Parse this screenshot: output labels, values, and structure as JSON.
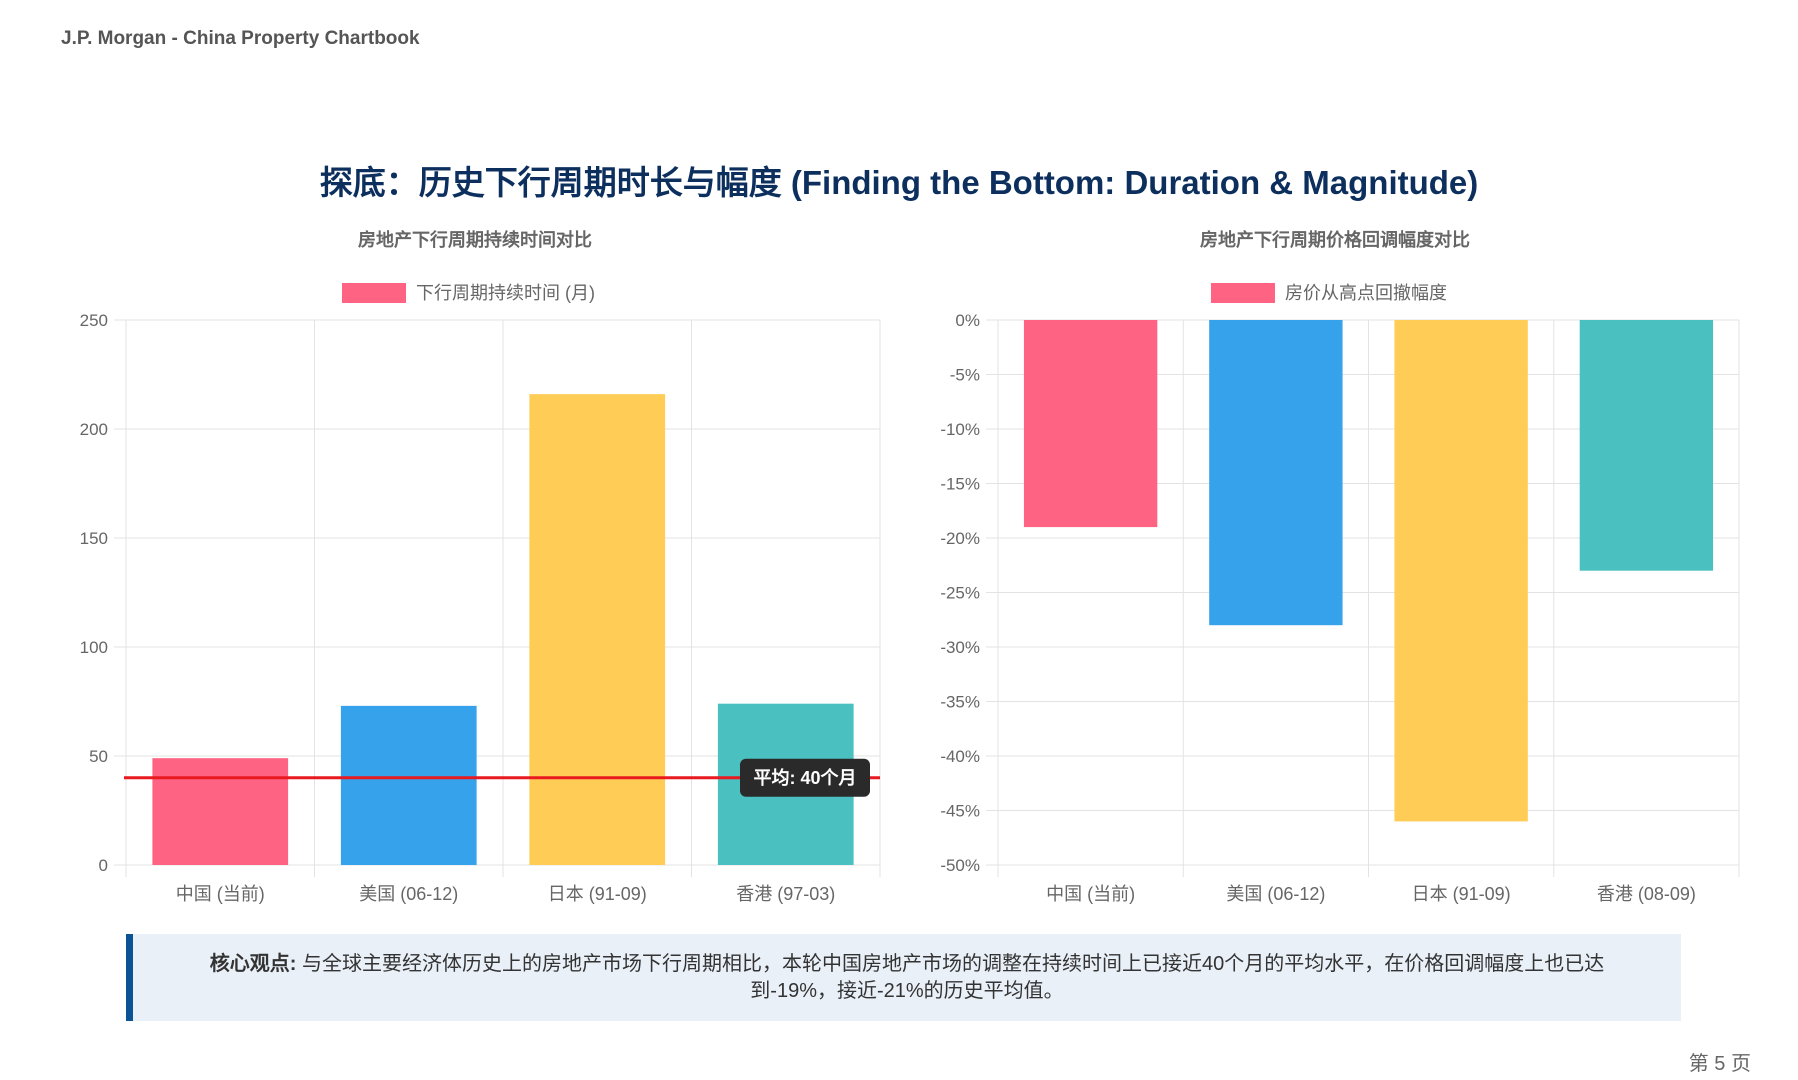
{
  "header": {
    "text": "J.P. Morgan - China Property Chartbook"
  },
  "page_title": "探底：历史下行周期时长与幅度 (Finding the Bottom: Duration & Magnitude)",
  "chart_data": [
    {
      "type": "bar",
      "title": "房地产下行周期持续时间对比",
      "legend": {
        "label": "下行周期持续时间 (月)",
        "position": "top",
        "color": "#ff6384"
      },
      "categories": [
        "中国 (当前)",
        "美国 (06-12)",
        "日本 (91-09)",
        "香港 (97-03)"
      ],
      "series": [
        {
          "name": "下行周期持续时间 (月)",
          "values": [
            49,
            73,
            216,
            74
          ]
        }
      ],
      "colors": [
        "#ff6384",
        "#36a2eb",
        "#ffcd56",
        "#4bc0c0"
      ],
      "ylim": [
        0,
        250
      ],
      "yticks": [
        0,
        50,
        100,
        150,
        200,
        250
      ],
      "ytick_labels": [
        "0",
        "50",
        "100",
        "150",
        "200",
        "250"
      ],
      "reference_line": {
        "value": 40,
        "label": "平均: 40个月",
        "color": "#e8191f"
      },
      "grid": true
    },
    {
      "type": "bar",
      "title": "房地产下行周期价格回调幅度对比",
      "legend": {
        "label": "房价从高点回撤幅度",
        "position": "top",
        "color": "#ff6384"
      },
      "categories": [
        "中国 (当前)",
        "美国 (06-12)",
        "日本 (91-09)",
        "香港 (08-09)"
      ],
      "series": [
        {
          "name": "房价从高点回撤幅度",
          "values": [
            -19,
            -28,
            -46,
            -23
          ]
        }
      ],
      "colors": [
        "#ff6384",
        "#36a2eb",
        "#ffcd56",
        "#4bc0c0"
      ],
      "ylim": [
        -50,
        0
      ],
      "yticks": [
        0,
        -5,
        -10,
        -15,
        -20,
        -25,
        -30,
        -35,
        -40,
        -45,
        -50
      ],
      "ytick_labels": [
        "0%",
        "-5%",
        "-10%",
        "-15%",
        "-20%",
        "-25%",
        "-30%",
        "-35%",
        "-40%",
        "-45%",
        "-50%"
      ],
      "grid": true
    }
  ],
  "note": {
    "label": "核心观点:",
    "text": " 与全球主要经济体历史上的房地产市场下行周期相比，本轮中国房地产市场的调整在持续时间上已接近40个月的平均水平，在价格回调幅度上也已达到-19%，接近-21%的历史平均值。"
  },
  "footer": {
    "page": "第 5 页"
  }
}
